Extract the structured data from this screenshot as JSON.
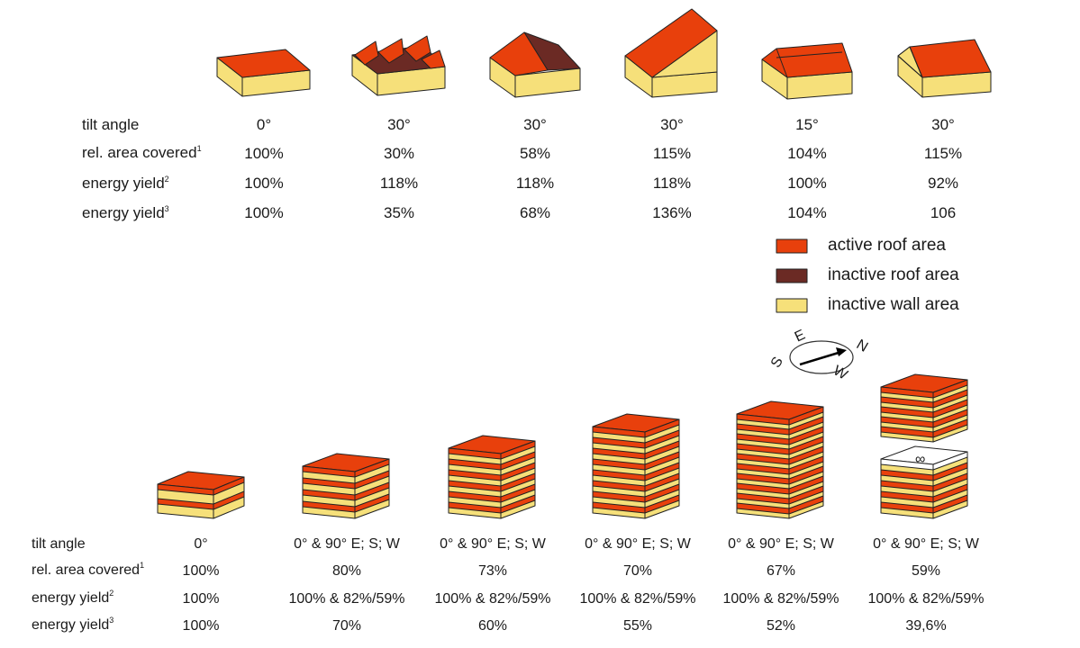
{
  "top_table": {
    "row_labels": [
      {
        "text": "tilt angle",
        "sup": ""
      },
      {
        "text": "rel. area covered",
        "sup": "1"
      },
      {
        "text": "energy yield",
        "sup": "2"
      },
      {
        "text": "energy yield",
        "sup": "3"
      }
    ],
    "columns": [
      {
        "tilt": "0°",
        "area": "100%",
        "yield2": "100%",
        "yield3": "100%"
      },
      {
        "tilt": "30°",
        "area": "30%",
        "yield2": "118%",
        "yield3": "35%"
      },
      {
        "tilt": "30°",
        "area": "58%",
        "yield2": "118%",
        "yield3": "68%"
      },
      {
        "tilt": "30°",
        "area": "115%",
        "yield2": "118%",
        "yield3": "136%"
      },
      {
        "tilt": "15°",
        "area": "104%",
        "yield2": "100%",
        "yield3": "104%"
      },
      {
        "tilt": "30°",
        "area": "115%",
        "yield2": "92%",
        "yield3": "106"
      }
    ]
  },
  "legend": {
    "items": [
      {
        "label": "active roof area",
        "color": "#e8400c"
      },
      {
        "label": "inactive roof area",
        "color": "#6b2a24"
      },
      {
        "label": "inactive wall area",
        "color": "#f6e07a"
      }
    ]
  },
  "compass": {
    "n": "N",
    "e": "E",
    "s": "S",
    "w": "W"
  },
  "bottom_table": {
    "row_labels": [
      {
        "text": "tilt angle",
        "sup": ""
      },
      {
        "text": "rel. area covered",
        "sup": "1"
      },
      {
        "text": "energy yield",
        "sup": "2"
      },
      {
        "text": "energy yield",
        "sup": "3"
      }
    ],
    "columns": [
      {
        "tilt": "0°",
        "area": "100%",
        "yield2": "100%",
        "yield3": "100%"
      },
      {
        "tilt": "0° & 90° E; S; W",
        "area": "80%",
        "yield2": "100% & 82%/59%",
        "yield3": "70%"
      },
      {
        "tilt": "0° & 90° E; S; W",
        "area": "73%",
        "yield2": "100% & 82%/59%",
        "yield3": "60%"
      },
      {
        "tilt": "0° & 90° E; S; W",
        "area": "70%",
        "yield2": "100% & 82%/59%",
        "yield3": "55%"
      },
      {
        "tilt": "0° & 90° E; S; W",
        "area": "67%",
        "yield2": "100% & 82%/59%",
        "yield3": "52%"
      },
      {
        "tilt": "0° & 90° E; S; W",
        "area": "59%",
        "yield2": "100% & 82%/59%",
        "yield3": "39,6%"
      }
    ],
    "infinity_symbol": "∞"
  },
  "colors": {
    "active_roof": "#e8400c",
    "inactive_roof": "#6b2a24",
    "wall": "#f6e07a",
    "outline": "#222222"
  }
}
